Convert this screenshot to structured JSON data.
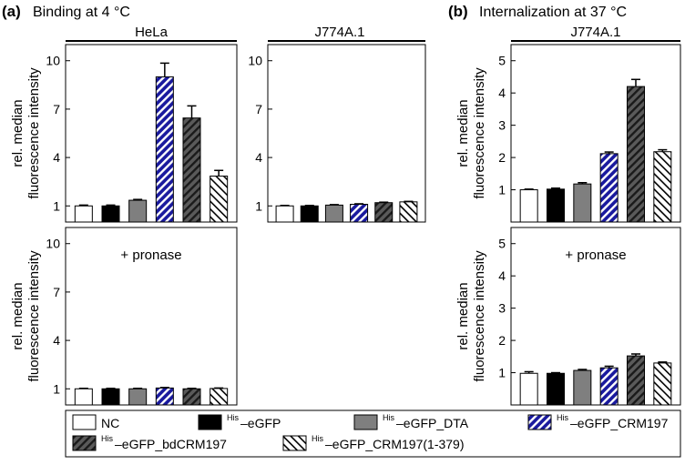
{
  "panel_labels": {
    "a_letter": "(a)",
    "a_title": "Binding at 4 °C",
    "b_letter": "(b)",
    "b_title": "Internalization at 37 °C"
  },
  "legend": [
    {
      "key": "nc",
      "sup": "",
      "name": "NC"
    },
    {
      "key": "egfp",
      "sup": "His",
      "name": "–eGFP"
    },
    {
      "key": "dta",
      "sup": "His",
      "name": "–eGFP_DTA"
    },
    {
      "key": "crm197",
      "sup": "His",
      "name": "–eGFP_CRM197"
    },
    {
      "key": "bdcrm197",
      "sup": "His",
      "name": "–eGFP_bdCRM197"
    },
    {
      "key": "crm197_1_379",
      "sup": "His",
      "name": "–eGFP_CRM197(1-379)"
    }
  ],
  "styles": {
    "nc": {
      "fill": "#ffffff"
    },
    "egfp": {
      "fill": "#000000"
    },
    "dta": {
      "fill": "#7f7f7f"
    },
    "crm197": {
      "fill": "#1a1a9e",
      "hatch": "#ffffff"
    },
    "bdcrm197": {
      "fill": "#5a5a5a",
      "hatch": "#1a1a1a"
    },
    "crm197_1_379": {
      "fill": "#ffffff",
      "hatch": "#000000"
    }
  },
  "chart_data": [
    {
      "id": "a-hela-binding",
      "type": "bar",
      "title": "HeLa",
      "ylabel": "rel. median fluorescence intensity",
      "ylim": [
        0,
        11
      ],
      "yticks": [
        1,
        4,
        7,
        10
      ],
      "annotation": "",
      "series": [
        {
          "key": "nc",
          "value": 1.0,
          "error": 0.05
        },
        {
          "key": "egfp",
          "value": 1.0,
          "error": 0.05
        },
        {
          "key": "dta",
          "value": 1.35,
          "error": 0.05
        },
        {
          "key": "crm197",
          "value": 9.0,
          "error": 0.85
        },
        {
          "key": "bdcrm197",
          "value": 6.45,
          "error": 0.75
        },
        {
          "key": "crm197_1_379",
          "value": 2.85,
          "error": 0.35
        }
      ]
    },
    {
      "id": "a-j774-binding",
      "type": "bar",
      "title": "J774A.1",
      "ylabel": "",
      "ylim": [
        0,
        11
      ],
      "yticks": [
        1,
        4,
        7,
        10
      ],
      "annotation": "",
      "series": [
        {
          "key": "nc",
          "value": 1.0,
          "error": 0.03
        },
        {
          "key": "egfp",
          "value": 1.0,
          "error": 0.03
        },
        {
          "key": "dta",
          "value": 1.05,
          "error": 0.03
        },
        {
          "key": "crm197",
          "value": 1.1,
          "error": 0.03
        },
        {
          "key": "bdcrm197",
          "value": 1.2,
          "error": 0.03
        },
        {
          "key": "crm197_1_379",
          "value": 1.25,
          "error": 0.03
        }
      ]
    },
    {
      "id": "a-hela-pronase",
      "type": "bar",
      "title": "",
      "ylabel": "rel. median fluorescence intensity",
      "ylim": [
        0,
        11
      ],
      "yticks": [
        1,
        4,
        7,
        10
      ],
      "annotation": "+ pronase",
      "series": [
        {
          "key": "nc",
          "value": 1.0,
          "error": 0.03
        },
        {
          "key": "egfp",
          "value": 1.0,
          "error": 0.03
        },
        {
          "key": "dta",
          "value": 1.0,
          "error": 0.03
        },
        {
          "key": "crm197",
          "value": 1.05,
          "error": 0.03
        },
        {
          "key": "bdcrm197",
          "value": 1.0,
          "error": 0.03
        },
        {
          "key": "crm197_1_379",
          "value": 1.02,
          "error": 0.03
        }
      ]
    },
    {
      "id": "b-j774-internalization",
      "type": "bar",
      "title": "J774A.1",
      "ylabel": "rel. median fluorescence intensity",
      "ylim": [
        0,
        5.5
      ],
      "yticks": [
        1,
        2,
        3,
        4,
        5
      ],
      "annotation": "",
      "series": [
        {
          "key": "nc",
          "value": 1.0,
          "error": 0.02
        },
        {
          "key": "egfp",
          "value": 1.02,
          "error": 0.03
        },
        {
          "key": "dta",
          "value": 1.18,
          "error": 0.04
        },
        {
          "key": "crm197",
          "value": 2.12,
          "error": 0.05
        },
        {
          "key": "bdcrm197",
          "value": 4.2,
          "error": 0.22
        },
        {
          "key": "crm197_1_379",
          "value": 2.18,
          "error": 0.06
        }
      ]
    },
    {
      "id": "b-j774-pronase",
      "type": "bar",
      "title": "",
      "ylabel": "rel. median fluorescence intensity",
      "ylim": [
        0,
        5.5
      ],
      "yticks": [
        1,
        2,
        3,
        4,
        5
      ],
      "annotation": "+ pronase",
      "series": [
        {
          "key": "nc",
          "value": 0.98,
          "error": 0.05
        },
        {
          "key": "egfp",
          "value": 0.98,
          "error": 0.02
        },
        {
          "key": "dta",
          "value": 1.07,
          "error": 0.03
        },
        {
          "key": "crm197",
          "value": 1.15,
          "error": 0.05
        },
        {
          "key": "bdcrm197",
          "value": 1.52,
          "error": 0.06
        },
        {
          "key": "crm197_1_379",
          "value": 1.3,
          "error": 0.03
        }
      ]
    }
  ]
}
